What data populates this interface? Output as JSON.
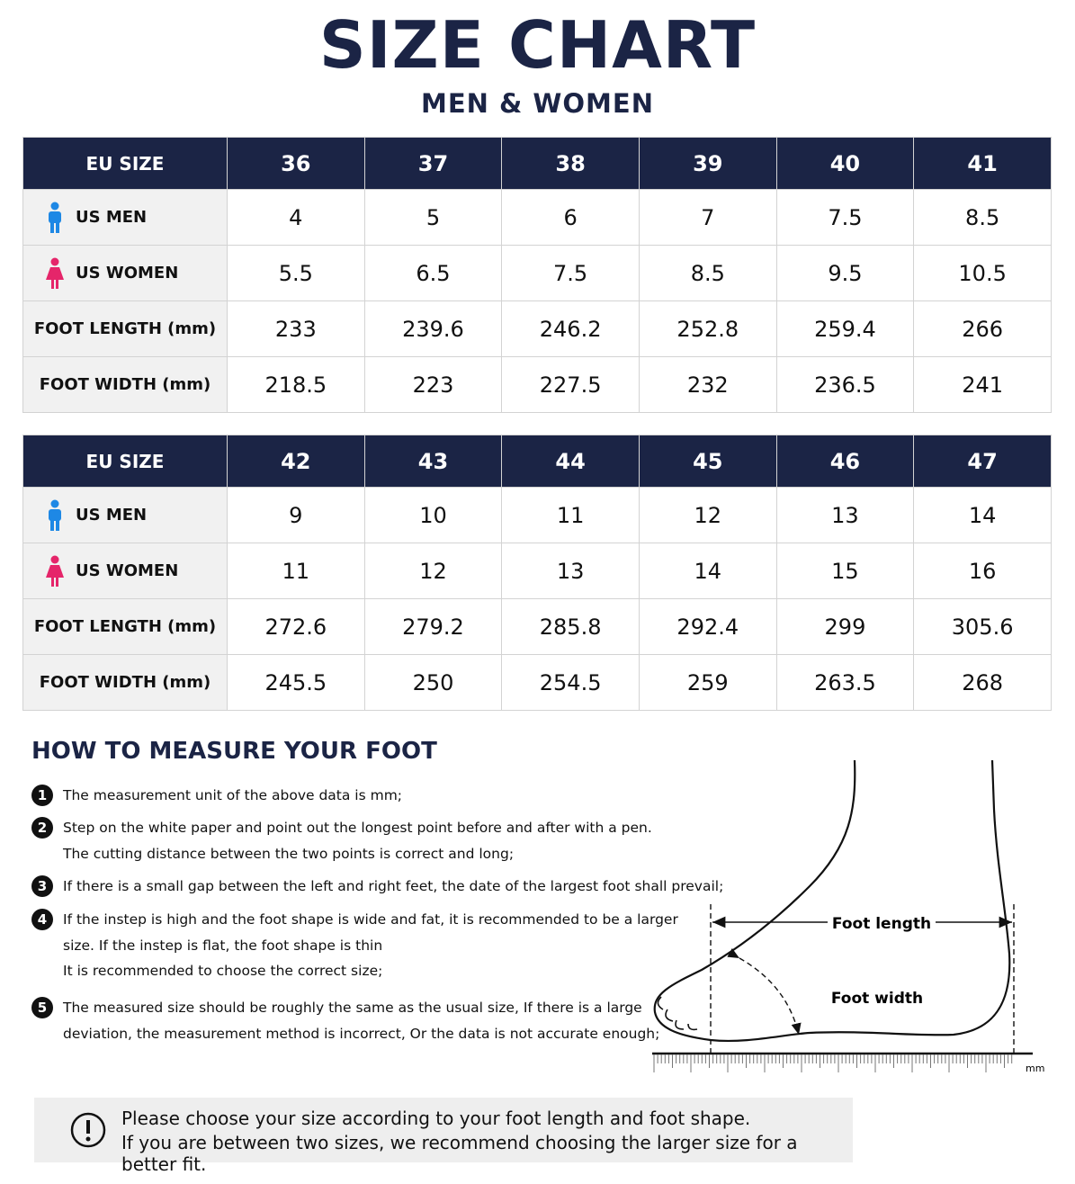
{
  "header": {
    "title": "SIZE CHART",
    "subtitle": "MEN & WOMEN"
  },
  "tables": [
    {
      "header": [
        "EU SIZE",
        "36",
        "37",
        "38",
        "39",
        "40",
        "41"
      ],
      "rows": [
        [
          "US MEN",
          "4",
          "5",
          "6",
          "7",
          "7.5",
          "8.5"
        ],
        [
          "US WOMEN",
          "5.5",
          "6.5",
          "7.5",
          "8.5",
          "9.5",
          "10.5"
        ],
        [
          "FOOT LENGTH (mm)",
          "233",
          "239.6",
          "246.2",
          "252.8",
          "259.4",
          "266"
        ],
        [
          "FOOT WIDTH (mm)",
          "218.5",
          "223",
          "227.5",
          "232",
          "236.5",
          "241"
        ]
      ]
    },
    {
      "header": [
        "EU SIZE",
        "42",
        "43",
        "44",
        "45",
        "46",
        "47"
      ],
      "rows": [
        [
          "US MEN",
          "9",
          "10",
          "11",
          "12",
          "13",
          "14"
        ],
        [
          "US WOMEN",
          "11",
          "12",
          "13",
          "14",
          "15",
          "16"
        ],
        [
          "FOOT LENGTH (mm)",
          "272.6",
          "279.2",
          "285.8",
          "292.4",
          "299",
          "305.6"
        ],
        [
          "FOOT WIDTH (mm)",
          "245.5",
          "250",
          "254.5",
          "259",
          "263.5",
          "268"
        ]
      ]
    }
  ],
  "measure": {
    "title": "HOW TO MEASURE YOUR FOOT",
    "steps": [
      {
        "number": "1",
        "lines": [
          "The measurement unit of the above data is mm;"
        ]
      },
      {
        "number": "2",
        "lines": [
          "Step on the white paper and point out the longest point before and after with a pen.",
          "The cutting distance between the two points is correct and long;"
        ]
      },
      {
        "number": "3",
        "lines": [
          "If there is a small gap between the left and right feet, the date of the largest foot shall prevail;"
        ]
      },
      {
        "number": "4",
        "lines": [
          "If the instep is high and the foot shape is wide and fat, it is recommended to be a larger",
          "size. If the instep is flat, the foot shape is thin",
          "It is recommended to choose the correct size;"
        ]
      },
      {
        "number": "5",
        "lines": [
          "The measured size should be roughly the same as the usual size, If there is a large",
          "deviation, the measurement method is incorrect, Or the data is not accurate enough;"
        ]
      }
    ],
    "diagram": {
      "length_label": "Foot length",
      "width_label": "Foot width",
      "unit": "mm"
    }
  },
  "note": {
    "lines": [
      "Please choose your size according to your foot length and foot shape.",
      "If you are between two sizes, we recommend choosing the larger size for a better fit."
    ]
  }
}
